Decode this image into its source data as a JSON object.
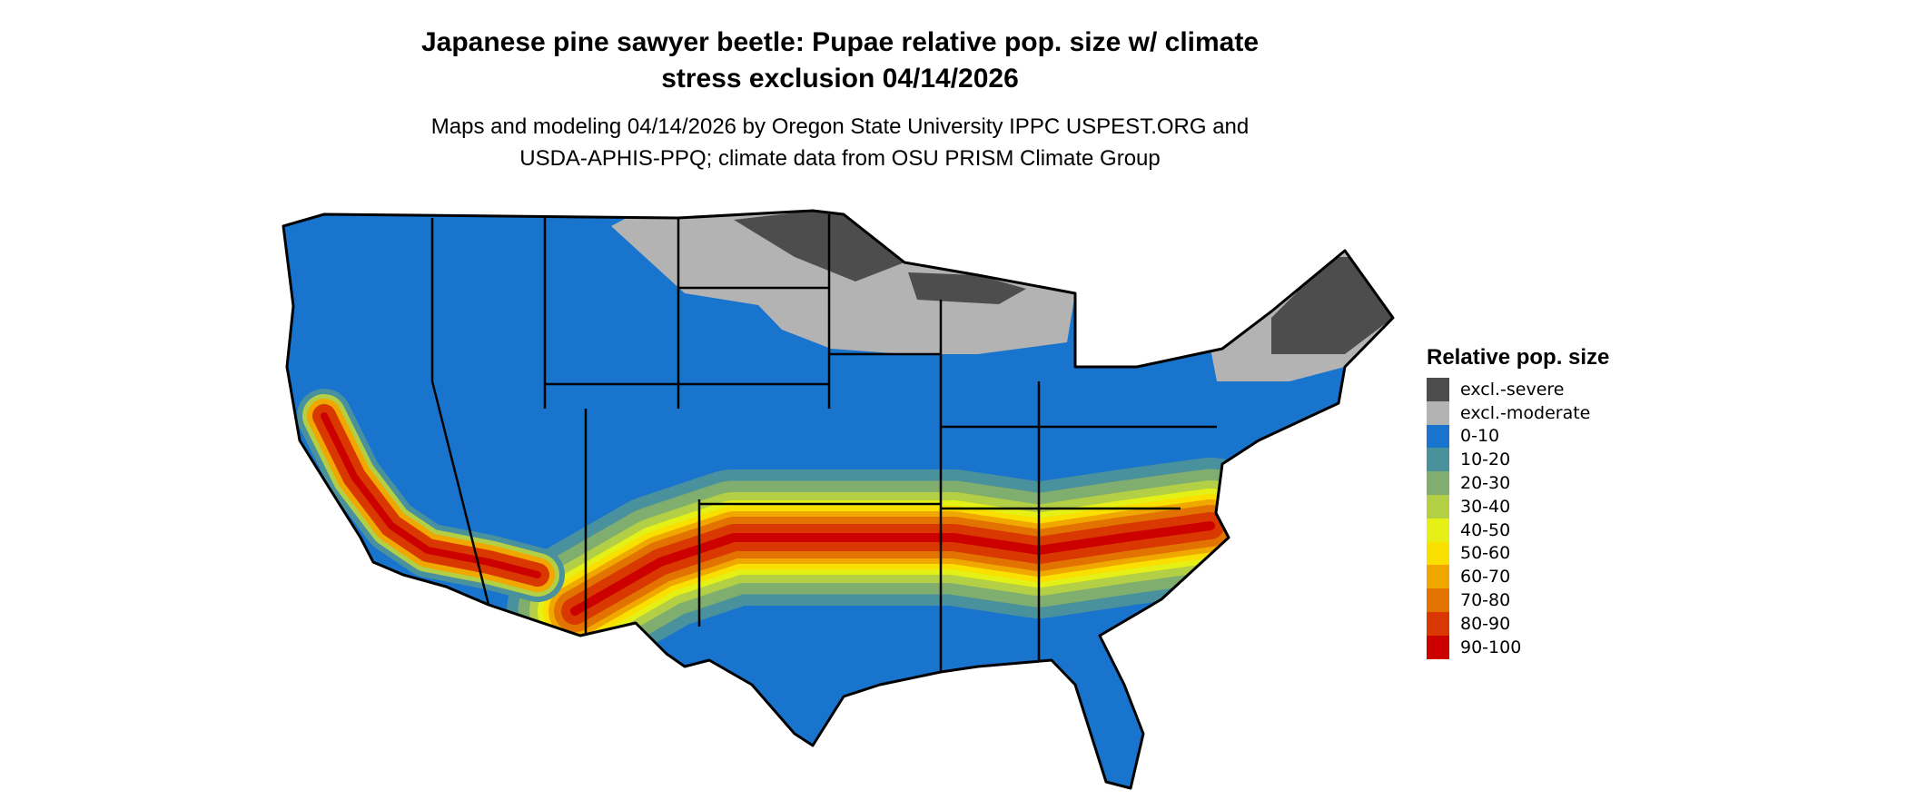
{
  "title_line1": "Japanese pine sawyer beetle: Pupae relative pop. size w/ climate",
  "title_line2": "stress exclusion 04/14/2026",
  "subtitle_line1": "Maps and modeling 04/14/2026 by Oregon State University IPPC USPEST.ORG and",
  "subtitle_line2": "USDA-APHIS-PPQ; climate data from OSU PRISM Climate Group",
  "chart_data": {
    "type": "map",
    "region": "Contiguous United States",
    "legend_title": "Relative pop. size",
    "legend_placement": "right",
    "legend": [
      {
        "label": "excl.-severe",
        "color": "#4d4d4d"
      },
      {
        "label": "excl.-moderate",
        "color": "#b3b3b3"
      },
      {
        "label": "0-10",
        "color": "#1874cd"
      },
      {
        "label": "10-20",
        "color": "#4a919e"
      },
      {
        "label": "20-30",
        "color": "#7fae6e"
      },
      {
        "label": "30-40",
        "color": "#b2cf45"
      },
      {
        "label": "40-50",
        "color": "#e5f016"
      },
      {
        "label": "50-60",
        "color": "#f9e000"
      },
      {
        "label": "60-70",
        "color": "#f0a800"
      },
      {
        "label": "70-80",
        "color": "#e37300"
      },
      {
        "label": "80-90",
        "color": "#d93800"
      },
      {
        "label": "90-100",
        "color": "#cd0000"
      }
    ]
  }
}
